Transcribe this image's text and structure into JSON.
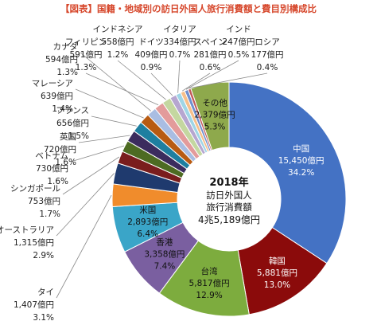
{
  "title": "【図表】国籍・地域別の訪日外国人旅行消費額と費目別構成比",
  "center": {
    "year": "2018年",
    "line1": "訪日外国人",
    "line2": "旅行消費額",
    "total": "4兆5,189億円"
  },
  "colors": {
    "title": "#d6462a",
    "leader": "#8a8a8a"
  },
  "chart_data": {
    "type": "pie",
    "donut": true,
    "title": "【図表】国籍・地域別の訪日外国人旅行消費額と費目別構成比",
    "center_total_label": "4兆5,189億円",
    "slices": [
      {
        "name": "中国",
        "amount": "15,450億円",
        "share": "34.2%",
        "value": 34.2,
        "color": "#4472c4"
      },
      {
        "name": "韓国",
        "amount": "5,881億円",
        "share": "13.0%",
        "value": 13.0,
        "color": "#8b0b0b"
      },
      {
        "name": "台湾",
        "amount": "5,817億円",
        "share": "12.9%",
        "value": 12.9,
        "color": "#7dac3e"
      },
      {
        "name": "香港",
        "amount": "3,358億円",
        "share": "7.4%",
        "value": 7.4,
        "color": "#7a5fa0"
      },
      {
        "name": "米国",
        "amount": "2,893億円",
        "share": "6.4%",
        "value": 6.4,
        "color": "#3aa5c8"
      },
      {
        "name": "タイ",
        "amount": "1,407億円",
        "share": "3.1%",
        "value": 3.1,
        "color": "#f08c2c"
      },
      {
        "name": "オーストラリア",
        "amount": "1,315億円",
        "share": "2.9%",
        "value": 2.9,
        "color": "#1f3a6e"
      },
      {
        "name": "シンガポール",
        "amount": "753億円",
        "share": "1.7%",
        "value": 1.7,
        "color": "#7a1d1d"
      },
      {
        "name": "ベトナム",
        "amount": "730億円",
        "share": "1.6%",
        "value": 1.6,
        "color": "#4d6b22"
      },
      {
        "name": "英国",
        "amount": "720億円",
        "share": "1.6%",
        "value": 1.6,
        "color": "#3b2c5e"
      },
      {
        "name": "フランス",
        "amount": "656億円",
        "share": "1.5%",
        "value": 1.5,
        "color": "#1e7fa0"
      },
      {
        "name": "マレーシア",
        "amount": "639億円",
        "share": "1.4%",
        "value": 1.4,
        "color": "#b85b12"
      },
      {
        "name": "カナダ",
        "amount": "594億円",
        "share": "1.3%",
        "value": 1.3,
        "color": "#a9bde2"
      },
      {
        "name": "フィリピン",
        "amount": "591億円",
        "share": "1.3%",
        "value": 1.3,
        "color": "#e39b9b"
      },
      {
        "name": "インドネシア",
        "amount": "558億円",
        "share": "1.2%",
        "value": 1.2,
        "color": "#c4d7a0"
      },
      {
        "name": "ドイツ",
        "amount": "409億円",
        "share": "0.9%",
        "value": 0.9,
        "color": "#b6a6d0"
      },
      {
        "name": "イタリア",
        "amount": "334億円",
        "share": "0.7%",
        "value": 0.7,
        "color": "#9fd5e6"
      },
      {
        "name": "スペイン",
        "amount": "281億円",
        "share": "0.6%",
        "value": 0.6,
        "color": "#f6bf8a"
      },
      {
        "name": "インド",
        "amount": "247億円",
        "share": "0.5%",
        "value": 0.5,
        "color": "#6f8fce"
      },
      {
        "name": "ロシア",
        "amount": "177億円",
        "share": "0.4%",
        "value": 0.4,
        "color": "#c25a5a"
      },
      {
        "name": "その他",
        "amount": "2,379億円",
        "share": "5.3%",
        "value": 5.3,
        "color": "#8ea94c"
      }
    ]
  }
}
